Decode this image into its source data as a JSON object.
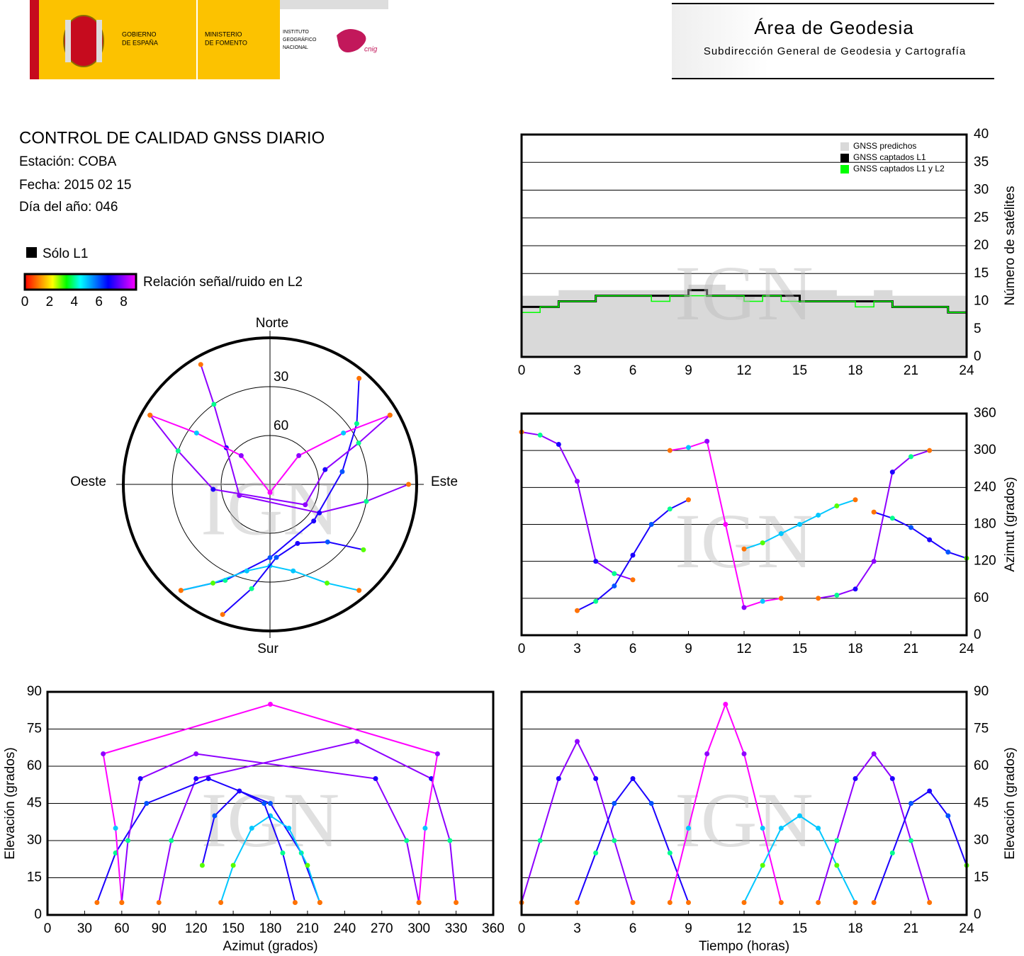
{
  "header": {
    "gov_lines": [
      "GOBIERNO",
      "DE ESPAÑA"
    ],
    "ministry_lines": [
      "MINISTERIO",
      "DE FOMENTO"
    ],
    "institute_lines": [
      "INSTITUTO",
      "GEOGRÁFICO",
      "NACIONAL"
    ],
    "cnig": "cnig",
    "title": "Área de Geodesia",
    "subtitle": "Subdirección General de Geodesia y Cartografía"
  },
  "report": {
    "title": "CONTROL DE CALIDAD GNSS DIARIO",
    "lines": [
      "Estación: COBA",
      "Fecha: 2015 02 15",
      "Día del año: 046"
    ]
  },
  "legend": {
    "l1_only": "Sólo L1",
    "l1_color": "#000000",
    "snr_label": "Relación señal/ruido en L2",
    "snr_colors": [
      "#ff0000",
      "#ff8000",
      "#ffff00",
      "#00ff00",
      "#00ffff",
      "#0080ff",
      "#0000ff",
      "#8000ff",
      "#ff00ff"
    ],
    "snr_lim": [
      0,
      9
    ],
    "snr_ticks": [
      0,
      2,
      4,
      6,
      8
    ]
  },
  "watermark": "IGN",
  "chart_data": [
    {
      "type": "step",
      "ylabel": "Número de satélites",
      "x": [
        0,
        1,
        2,
        3,
        4,
        5,
        6,
        7,
        8,
        9,
        10,
        11,
        12,
        13,
        14,
        15,
        16,
        17,
        18,
        19,
        20,
        21,
        22,
        23,
        24
      ],
      "xlim": [
        0,
        24
      ],
      "xticks": [
        0,
        3,
        6,
        9,
        12,
        15,
        18,
        21,
        24
      ],
      "ylim": [
        0,
        40
      ],
      "yticks": [
        0,
        5,
        10,
        15,
        20,
        25,
        30,
        35,
        40
      ],
      "y_axis_side": "right",
      "grid": true,
      "legend_position": "upper right",
      "series": [
        {
          "name": "GNSS predichos",
          "color": "#d9d9d9",
          "fill": true,
          "values": [
            11,
            11,
            12,
            12,
            12,
            12,
            12,
            12,
            12,
            13,
            13,
            12,
            12,
            12,
            12,
            12,
            12,
            11,
            11,
            12,
            11,
            11,
            11,
            11,
            11
          ]
        },
        {
          "name": "GNSS captados L1",
          "color": "#000000",
          "values": [
            9,
            9,
            10,
            10,
            11,
            11,
            11,
            11,
            11,
            12,
            11,
            11,
            11,
            11,
            11,
            10,
            10,
            10,
            10,
            10,
            9,
            9,
            9,
            8,
            10
          ]
        },
        {
          "name": "GNSS captados L1 y L2",
          "color": "#00ff00",
          "values": [
            8,
            9,
            10,
            10,
            11,
            11,
            11,
            10,
            11,
            11,
            11,
            11,
            10,
            11,
            10,
            10,
            10,
            10,
            9,
            10,
            9,
            9,
            9,
            8,
            9
          ]
        }
      ]
    },
    {
      "type": "polar",
      "labels": {
        "north": "Norte",
        "east": "Este",
        "south": "Sur",
        "west": "Oeste"
      },
      "ylim": [
        0,
        90
      ],
      "rings": [
        30,
        60
      ],
      "series": [
        {
          "azimuth": [
            330,
            325,
            310,
            250,
            120,
            100,
            90
          ],
          "elevation": [
            5,
            30,
            55,
            70,
            55,
            30,
            5
          ],
          "snr": [
            1,
            4,
            7,
            8,
            7,
            4,
            1
          ]
        },
        {
          "azimuth": [
            40,
            55,
            80,
            130,
            180,
            205,
            220
          ],
          "elevation": [
            5,
            25,
            45,
            55,
            45,
            25,
            5
          ],
          "snr": [
            1,
            4,
            6,
            7,
            6,
            4,
            1
          ]
        },
        {
          "azimuth": [
            300,
            305,
            315,
            180,
            45,
            55,
            60
          ],
          "elevation": [
            5,
            35,
            65,
            85,
            65,
            35,
            5
          ],
          "snr": [
            1,
            5,
            8,
            9,
            8,
            5,
            1
          ]
        },
        {
          "azimuth": [
            140,
            150,
            165,
            180,
            195,
            210,
            220
          ],
          "elevation": [
            5,
            20,
            35,
            40,
            35,
            20,
            5
          ],
          "snr": [
            1,
            3,
            5,
            5,
            5,
            3,
            1
          ]
        },
        {
          "azimuth": [
            60,
            65,
            75,
            120,
            265,
            290,
            300
          ],
          "elevation": [
            5,
            30,
            55,
            65,
            55,
            30,
            5
          ],
          "snr": [
            1,
            4,
            7,
            8,
            7,
            4,
            1
          ]
        },
        {
          "azimuth": [
            200,
            190,
            175,
            155,
            135,
            125
          ],
          "elevation": [
            5,
            25,
            45,
            50,
            40,
            20
          ],
          "snr": [
            1,
            4,
            6,
            7,
            6,
            3
          ]
        }
      ]
    },
    {
      "type": "scatter",
      "ylabel": "Azimut (grados)",
      "xlim": [
        0,
        24
      ],
      "xticks": [
        0,
        3,
        6,
        9,
        12,
        15,
        18,
        21,
        24
      ],
      "ylim": [
        0,
        360
      ],
      "yticks": [
        0,
        60,
        120,
        180,
        240,
        300,
        360
      ],
      "y_axis_side": "right",
      "grid": true,
      "series": [
        {
          "x": [
            0,
            1,
            2,
            3,
            4,
            5,
            6
          ],
          "values": [
            330,
            325,
            310,
            250,
            120,
            100,
            90
          ],
          "snr": [
            1,
            4,
            7,
            8,
            7,
            4,
            1
          ]
        },
        {
          "x": [
            3,
            4,
            5,
            6,
            7,
            8,
            9
          ],
          "values": [
            40,
            55,
            80,
            130,
            180,
            205,
            220
          ],
          "snr": [
            1,
            4,
            6,
            7,
            6,
            4,
            1
          ]
        },
        {
          "x": [
            8,
            9,
            10,
            11,
            12,
            13,
            14
          ],
          "values": [
            300,
            305,
            315,
            180,
            45,
            55,
            60
          ],
          "snr": [
            1,
            5,
            8,
            9,
            8,
            5,
            1
          ]
        },
        {
          "x": [
            12,
            13,
            14,
            15,
            16,
            17,
            18
          ],
          "values": [
            140,
            150,
            165,
            180,
            195,
            210,
            220
          ],
          "snr": [
            1,
            3,
            5,
            5,
            5,
            3,
            1
          ]
        },
        {
          "x": [
            16,
            17,
            18,
            19,
            20,
            21,
            22
          ],
          "values": [
            60,
            65,
            75,
            120,
            265,
            290,
            300
          ],
          "snr": [
            1,
            4,
            7,
            8,
            7,
            4,
            1
          ]
        },
        {
          "x": [
            19,
            20,
            21,
            22,
            23,
            24
          ],
          "values": [
            200,
            190,
            175,
            155,
            135,
            125
          ],
          "snr": [
            1,
            4,
            6,
            7,
            6,
            3
          ]
        }
      ]
    },
    {
      "type": "scatter",
      "xlabel": "Azimut (grados)",
      "ylabel": "Elevación (grados)",
      "xlim": [
        0,
        360
      ],
      "xticks": [
        0,
        30,
        60,
        90,
        120,
        150,
        180,
        210,
        240,
        270,
        300,
        330,
        360
      ],
      "ylim": [
        0,
        90
      ],
      "yticks": [
        0,
        15,
        30,
        45,
        60,
        75,
        90
      ],
      "y_axis_side": "left",
      "grid": true,
      "series": [
        {
          "x": [
            330,
            325,
            310,
            250,
            120,
            100,
            90
          ],
          "values": [
            5,
            30,
            55,
            70,
            55,
            30,
            5
          ],
          "snr": [
            1,
            4,
            7,
            8,
            7,
            4,
            1
          ]
        },
        {
          "x": [
            40,
            55,
            80,
            130,
            180,
            205,
            220
          ],
          "values": [
            5,
            25,
            45,
            55,
            45,
            25,
            5
          ],
          "snr": [
            1,
            4,
            6,
            7,
            6,
            4,
            1
          ]
        },
        {
          "x": [
            300,
            305,
            315,
            180,
            45,
            55,
            60
          ],
          "values": [
            5,
            35,
            65,
            85,
            65,
            35,
            5
          ],
          "snr": [
            1,
            5,
            8,
            9,
            8,
            5,
            1
          ]
        },
        {
          "x": [
            140,
            150,
            165,
            180,
            195,
            210,
            220
          ],
          "values": [
            5,
            20,
            35,
            40,
            35,
            20,
            5
          ],
          "snr": [
            1,
            3,
            5,
            5,
            5,
            3,
            1
          ]
        },
        {
          "x": [
            60,
            65,
            75,
            120,
            265,
            290,
            300
          ],
          "values": [
            5,
            30,
            55,
            65,
            55,
            30,
            5
          ],
          "snr": [
            1,
            4,
            7,
            8,
            7,
            4,
            1
          ]
        },
        {
          "x": [
            200,
            190,
            175,
            155,
            135,
            125
          ],
          "values": [
            5,
            25,
            45,
            50,
            40,
            20
          ],
          "snr": [
            1,
            4,
            6,
            7,
            6,
            3
          ]
        }
      ]
    },
    {
      "type": "scatter",
      "xlabel": "Tiempo (horas)",
      "ylabel": "Elevación (grados)",
      "xlim": [
        0,
        24
      ],
      "xticks": [
        0,
        3,
        6,
        9,
        12,
        15,
        18,
        21,
        24
      ],
      "ylim": [
        0,
        90
      ],
      "yticks": [
        0,
        15,
        30,
        45,
        60,
        75,
        90
      ],
      "y_axis_side": "right",
      "grid": true,
      "series": [
        {
          "x": [
            0,
            1,
            2,
            3,
            4,
            5,
            6
          ],
          "values": [
            5,
            30,
            55,
            70,
            55,
            30,
            5
          ],
          "snr": [
            1,
            4,
            7,
            8,
            7,
            4,
            1
          ]
        },
        {
          "x": [
            3,
            4,
            5,
            6,
            7,
            8,
            9
          ],
          "values": [
            5,
            25,
            45,
            55,
            45,
            25,
            5
          ],
          "snr": [
            1,
            4,
            6,
            7,
            6,
            4,
            1
          ]
        },
        {
          "x": [
            8,
            9,
            10,
            11,
            12,
            13,
            14
          ],
          "values": [
            5,
            35,
            65,
            85,
            65,
            35,
            5
          ],
          "snr": [
            1,
            5,
            8,
            9,
            8,
            5,
            1
          ]
        },
        {
          "x": [
            12,
            13,
            14,
            15,
            16,
            17,
            18
          ],
          "values": [
            5,
            20,
            35,
            40,
            35,
            20,
            5
          ],
          "snr": [
            1,
            3,
            5,
            5,
            5,
            3,
            1
          ]
        },
        {
          "x": [
            16,
            17,
            18,
            19,
            20,
            21,
            22
          ],
          "values": [
            5,
            30,
            55,
            65,
            55,
            30,
            5
          ],
          "snr": [
            1,
            4,
            7,
            8,
            7,
            4,
            1
          ]
        },
        {
          "x": [
            19,
            20,
            21,
            22,
            23,
            24
          ],
          "values": [
            5,
            25,
            45,
            50,
            40,
            20
          ],
          "snr": [
            1,
            4,
            6,
            7,
            6,
            3
          ]
        }
      ]
    }
  ]
}
